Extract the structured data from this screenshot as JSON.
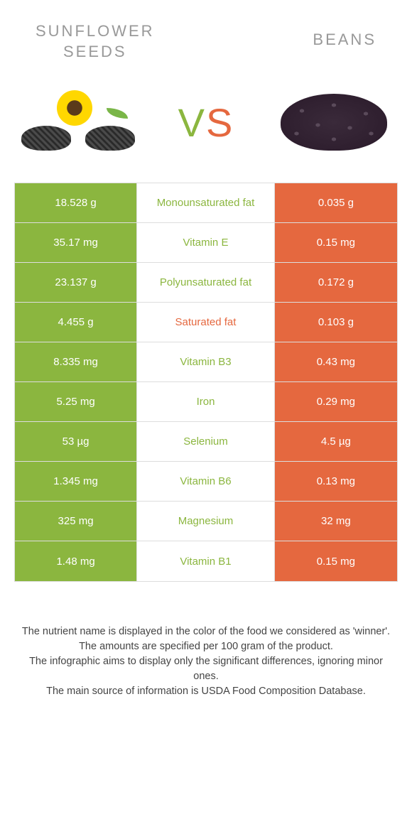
{
  "colors": {
    "green": "#8bb63f",
    "orange": "#e5683f",
    "title_gray": "#999999"
  },
  "header": {
    "left_title": "SUNFLOWER\nSEEDS",
    "right_title": "BEANS"
  },
  "vs": {
    "v": "V",
    "s": "S"
  },
  "rows": [
    {
      "left": "18.528 g",
      "label": "Monounsaturated fat",
      "right": "0.035 g",
      "winner": "left"
    },
    {
      "left": "35.17 mg",
      "label": "Vitamin E",
      "right": "0.15 mg",
      "winner": "left"
    },
    {
      "left": "23.137 g",
      "label": "Polyunsaturated fat",
      "right": "0.172 g",
      "winner": "left"
    },
    {
      "left": "4.455 g",
      "label": "Saturated fat",
      "right": "0.103 g",
      "winner": "right"
    },
    {
      "left": "8.335 mg",
      "label": "Vitamin B3",
      "right": "0.43 mg",
      "winner": "left"
    },
    {
      "left": "5.25 mg",
      "label": "Iron",
      "right": "0.29 mg",
      "winner": "left"
    },
    {
      "left": "53 µg",
      "label": "Selenium",
      "right": "4.5 µg",
      "winner": "left"
    },
    {
      "left": "1.345 mg",
      "label": "Vitamin B6",
      "right": "0.13 mg",
      "winner": "left"
    },
    {
      "left": "325 mg",
      "label": "Magnesium",
      "right": "32 mg",
      "winner": "left"
    },
    {
      "left": "1.48 mg",
      "label": "Vitamin B1",
      "right": "0.15 mg",
      "winner": "left"
    }
  ],
  "footer": {
    "line1": "The nutrient name is displayed in the color of the food we considered as 'winner'.",
    "line2": "The amounts are specified per 100 gram of the product.",
    "line3": "The infographic aims to display only the significant differences, ignoring minor ones.",
    "line4": "The main source of information is USDA Food Composition Database."
  }
}
